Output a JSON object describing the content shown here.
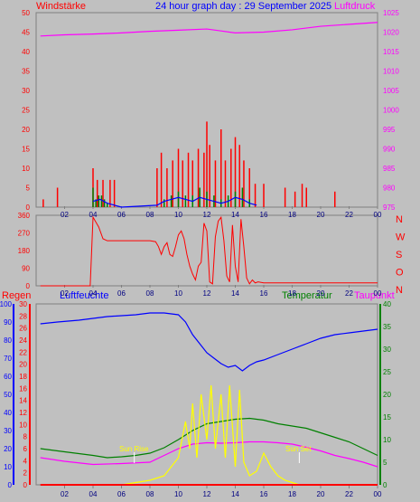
{
  "page": {
    "title": "24 hour graph day : 29 September 2025",
    "background": "#c0c0c0"
  },
  "panel_top": {
    "left_label": "Windstärke",
    "right_label": "Luftdruck",
    "left_color": "#ff0000",
    "right_color": "#ff00ff"
  },
  "panel_mid": {
    "direction_labels": [
      "N",
      "W",
      "S",
      "O",
      "N"
    ],
    "direction_color": "#ff0000"
  },
  "panel_bottom": {
    "labels": {
      "rain": "Regen",
      "humidity": "Luftfeuchte",
      "temperature": "Temperatur",
      "dewpoint": "Taupunkt"
    },
    "colors": {
      "rain": "#ff0000",
      "humidity": "#0000ff",
      "temperature": "#008000",
      "dewpoint": "#ff00ff",
      "sun": "#ffff00",
      "solar": "#add8e6"
    },
    "sun_rise": "Sun Rise",
    "sun_set": "Sun Set"
  },
  "chart_data": [
    {
      "type": "line",
      "title": "24 hour graph day : 29 September 2025",
      "x_ticks": [
        "02",
        "04",
        "06",
        "08",
        "10",
        "12",
        "14",
        "16",
        "18",
        "20",
        "22",
        "00"
      ],
      "left_axis": {
        "label": "Windstärke",
        "ticks": [
          0,
          5,
          10,
          15,
          20,
          25,
          30,
          35,
          40,
          45,
          50
        ],
        "ylim": [
          0,
          50
        ]
      },
      "right_axis": {
        "label": "Luftdruck",
        "ticks": [
          975,
          980,
          985,
          990,
          995,
          1000,
          1005,
          1010,
          1015,
          1020,
          1025
        ],
        "ylim": [
          975,
          1025
        ]
      },
      "series": [
        {
          "name": "Luftdruck",
          "axis": "right",
          "color": "#ff00ff",
          "x": [
            0.3,
            2,
            4,
            6,
            8,
            10,
            12,
            13,
            14,
            16,
            18,
            20,
            22,
            24
          ],
          "values": [
            1019.0,
            1019.3,
            1019.5,
            1019.8,
            1020.2,
            1020.5,
            1020.8,
            1020.3,
            1019.8,
            1020.0,
            1020.6,
            1021.5,
            1022.0,
            1022.5
          ]
        },
        {
          "name": "Windböen",
          "axis": "left",
          "color": "#ff0000",
          "style": "bars",
          "x": [
            0.5,
            1.5,
            4.0,
            4.3,
            4.7,
            5.2,
            5.5,
            8.5,
            8.8,
            9.2,
            9.6,
            10.0,
            10.3,
            10.7,
            11.0,
            11.4,
            11.8,
            12.0,
            12.2,
            12.6,
            13.0,
            13.3,
            13.7,
            14.0,
            14.3,
            14.6,
            15.0,
            15.4,
            16.0,
            17.5,
            18.2,
            18.7,
            19.0,
            21.0
          ],
          "values": [
            2,
            5,
            10,
            7,
            7,
            7,
            7,
            10,
            14,
            10,
            12,
            15,
            12,
            14,
            12,
            15,
            14,
            22,
            16,
            12,
            20,
            12,
            15,
            18,
            16,
            12,
            10,
            6,
            6,
            5,
            4,
            6,
            5,
            4
          ]
        },
        {
          "name": "Windgeschwindigkeit",
          "axis": "left",
          "color": "#008000",
          "style": "bars",
          "x": [
            4.0,
            4.2,
            4.4,
            4.6,
            4.8,
            5.0,
            9.0,
            9.5,
            10.0,
            10.5,
            11.0,
            11.5,
            12.0,
            12.5,
            13.0,
            13.5,
            14.0,
            14.5,
            15.0
          ],
          "values": [
            5,
            2,
            3,
            3,
            2,
            1,
            2,
            3,
            4,
            3,
            3,
            5,
            4,
            3,
            2,
            3,
            4,
            5,
            2
          ]
        },
        {
          "name": "Windmittel",
          "axis": "left",
          "color": "#0000ff",
          "x": [
            4.0,
            4.5,
            5.0,
            5.5,
            6.0,
            8.5,
            9.0,
            9.5,
            10.0,
            10.5,
            11.0,
            11.5,
            12.0,
            12.5,
            13.0,
            13.5,
            14.0,
            14.5,
            15.0,
            15.5
          ],
          "values": [
            1.5,
            2.0,
            1.0,
            0.5,
            0.0,
            0.5,
            1.5,
            2.0,
            2.5,
            2.0,
            1.5,
            2.5,
            2.0,
            1.5,
            1.0,
            1.5,
            2.5,
            2.0,
            1.0,
            0.5
          ]
        }
      ]
    },
    {
      "type": "line",
      "title": "",
      "x_ticks": [
        "02",
        "04",
        "06",
        "08",
        "10",
        "12",
        "14",
        "16",
        "18",
        "20",
        "22",
        "00"
      ],
      "left_axis": {
        "label": "",
        "ticks": [
          0,
          90,
          180,
          270,
          360
        ],
        "ylim": [
          0,
          360
        ]
      },
      "right_axis": {
        "label": "",
        "ticks": [
          "N",
          "W",
          "S",
          "O",
          "N"
        ]
      },
      "series": [
        {
          "name": "Windrichtung",
          "color": "#ff0000",
          "x": [
            0.3,
            3.8,
            4.0,
            4.4,
            4.7,
            5.0,
            6.0,
            7.0,
            8.0,
            8.4,
            8.6,
            8.8,
            9.0,
            9.2,
            9.4,
            9.6,
            9.8,
            10.0,
            10.2,
            10.4,
            10.6,
            10.8,
            11.0,
            11.2,
            11.4,
            11.6,
            11.8,
            12.0,
            12.2,
            12.4,
            12.6,
            12.8,
            13.0,
            13.2,
            13.4,
            13.6,
            13.8,
            14.0,
            14.2,
            14.4,
            14.6,
            14.8,
            15.0,
            15.2,
            15.4,
            15.6,
            16.0,
            18.0,
            20.0,
            22.0,
            24.0
          ],
          "values": [
            0,
            0,
            350,
            300,
            240,
            230,
            230,
            230,
            230,
            225,
            200,
            160,
            200,
            220,
            160,
            150,
            200,
            260,
            280,
            240,
            160,
            100,
            60,
            30,
            100,
            120,
            320,
            280,
            20,
            10,
            250,
            330,
            350,
            230,
            50,
            20,
            310,
            100,
            20,
            340,
            200,
            40,
            10,
            30,
            15,
            20,
            15,
            15,
            15,
            15,
            15
          ]
        }
      ]
    },
    {
      "type": "line",
      "title": "",
      "x_ticks": [
        "02",
        "04",
        "06",
        "08",
        "10",
        "12",
        "14",
        "16",
        "18",
        "20",
        "22",
        "00"
      ],
      "axes": {
        "humidity": {
          "label": "Luftfeuchte",
          "ticks": [
            0,
            10,
            20,
            30,
            40,
            50,
            60,
            70,
            80,
            90,
            100
          ]
        },
        "rain": {
          "label": "Regen",
          "ticks": [
            0,
            2,
            4,
            6,
            8,
            10,
            12,
            14,
            16,
            18,
            20,
            22,
            24,
            26,
            28,
            30
          ]
        },
        "temperature": {
          "label": "Temperatur",
          "ticks": [
            0,
            5,
            10,
            15,
            20,
            25,
            30,
            35,
            40
          ]
        }
      },
      "annotations": [
        "Sun Rise",
        "Sun Set"
      ],
      "series": [
        {
          "name": "Luftfeuchte",
          "axis": "humidity",
          "color": "#0000ff",
          "x": [
            0.3,
            1.5,
            3.0,
            5.0,
            7.0,
            8.0,
            9.0,
            10.0,
            10.5,
            11.0,
            11.5,
            12.0,
            12.5,
            13.0,
            13.5,
            14.0,
            14.5,
            15.0,
            15.5,
            16.0,
            17.0,
            18.0,
            19.0,
            20.0,
            21.0,
            22.0,
            23.0,
            24.0
          ],
          "values": [
            89,
            90,
            91,
            93,
            94,
            95,
            95,
            94,
            90,
            83,
            78,
            73,
            70,
            67,
            65,
            66,
            63,
            66,
            68,
            69,
            72,
            75,
            78,
            81,
            83,
            84,
            85,
            86
          ]
        },
        {
          "name": "Temperatur",
          "axis": "temperature",
          "color": "#008000",
          "x": [
            0.3,
            2.0,
            4.0,
            5.0,
            6.0,
            7.0,
            8.0,
            9.0,
            10.0,
            11.0,
            12.0,
            13.0,
            14.0,
            15.0,
            16.0,
            17.0,
            18.0,
            19.0,
            20.0,
            21.0,
            22.0,
            23.0,
            24.0
          ],
          "values": [
            8.0,
            7.3,
            6.5,
            6.0,
            6.2,
            6.5,
            7.0,
            8.2,
            10.0,
            12.0,
            13.5,
            14.0,
            14.5,
            14.7,
            14.3,
            13.5,
            13.0,
            12.5,
            11.5,
            10.5,
            9.5,
            8.0,
            6.5
          ]
        },
        {
          "name": "Taupunkt",
          "axis": "temperature",
          "color": "#ff00ff",
          "x": [
            0.3,
            2.0,
            4.0,
            6.0,
            8.0,
            9.0,
            10.0,
            11.0,
            12.0,
            13.0,
            14.0,
            15.0,
            16.0,
            17.0,
            18.0,
            19.0,
            20.0,
            21.0,
            22.0,
            23.0,
            24.0
          ],
          "values": [
            6.0,
            5.2,
            4.5,
            4.7,
            5.0,
            6.5,
            8.0,
            9.0,
            9.3,
            9.2,
            9.3,
            9.5,
            9.5,
            9.3,
            9.0,
            8.3,
            7.5,
            6.5,
            5.8,
            5.0,
            4.0
          ]
        },
        {
          "name": "Sonnenschein",
          "axis": "temperature",
          "color": "#ffff00",
          "x": [
            6.0,
            7.0,
            8.0,
            9.0,
            9.5,
            10.0,
            10.5,
            10.8,
            11.0,
            11.3,
            11.6,
            12.0,
            12.3,
            12.6,
            13.0,
            13.3,
            13.6,
            14.0,
            14.3,
            14.6,
            15.0,
            15.5,
            16.0,
            16.5,
            17.0,
            17.5,
            18.0,
            18.5
          ],
          "values": [
            0,
            0.5,
            1,
            2,
            4,
            6,
            14,
            8,
            18,
            6,
            20,
            10,
            22,
            8,
            20,
            6,
            22,
            4,
            21,
            5,
            2,
            3,
            7,
            4,
            2,
            1,
            0.5,
            0
          ]
        },
        {
          "name": "Regen",
          "axis": "rain",
          "color": "#ff0000",
          "x": [
            0.3,
            24.0
          ],
          "values": [
            0,
            0
          ]
        }
      ]
    }
  ]
}
